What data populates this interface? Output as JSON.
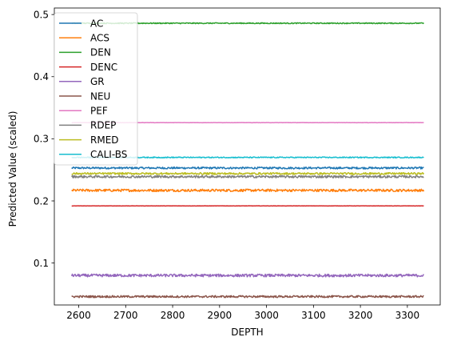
{
  "chart_data": {
    "type": "line",
    "title": "",
    "xlabel": "DEPTH",
    "ylabel": "Predicted Value (scaled)",
    "xlim": [
      2548,
      3370
    ],
    "ylim": [
      0.0325,
      0.5105
    ],
    "x_range": [
      2585,
      3335
    ],
    "xticks": [
      2600,
      2700,
      2800,
      2900,
      3000,
      3100,
      3200,
      3300
    ],
    "yticks": [
      0.1,
      0.2,
      0.3,
      0.4,
      0.5
    ],
    "ytick_labels": [
      "0.1",
      "0.2",
      "0.3",
      "0.4",
      "0.5"
    ],
    "grid": false,
    "legend_position": "top-left",
    "series": [
      {
        "name": "AC",
        "value": 0.253,
        "noise": 0.0015,
        "color": "#1f77b4"
      },
      {
        "name": "ACS",
        "value": 0.217,
        "noise": 0.002,
        "color": "#ff7f0e"
      },
      {
        "name": "DEN",
        "value": 0.486,
        "noise": 0.0008,
        "color": "#2ca02c"
      },
      {
        "name": "DENC",
        "value": 0.192,
        "noise": 0.0002,
        "color": "#d62728"
      },
      {
        "name": "GR",
        "value": 0.08,
        "noise": 0.0022,
        "color": "#9467bd"
      },
      {
        "name": "NEU",
        "value": 0.046,
        "noise": 0.0016,
        "color": "#8c564b"
      },
      {
        "name": "PEF",
        "value": 0.326,
        "noise": 0.0002,
        "color": "#e377c2"
      },
      {
        "name": "RDEP",
        "value": 0.239,
        "noise": 0.0018,
        "color": "#7f7f7f"
      },
      {
        "name": "RMED",
        "value": 0.244,
        "noise": 0.0015,
        "color": "#bcbd22"
      },
      {
        "name": "CALI-BS",
        "value": 0.27,
        "noise": 0.0008,
        "color": "#17becf"
      }
    ]
  }
}
